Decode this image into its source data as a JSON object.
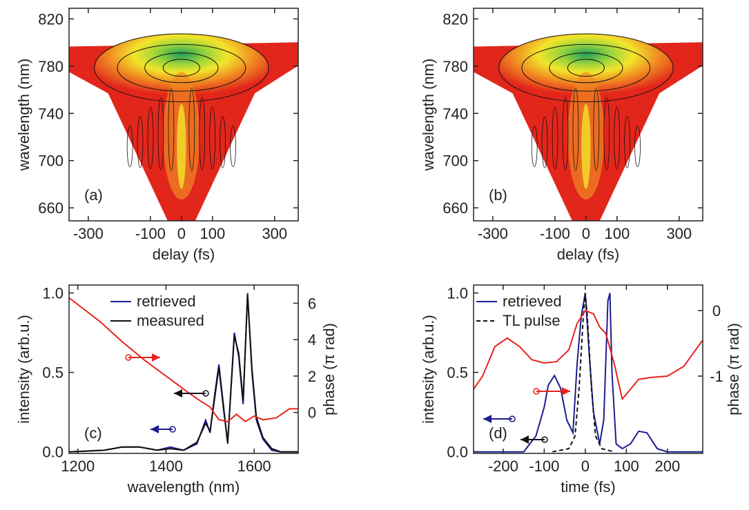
{
  "chart_data": [
    {
      "type": "contour",
      "label": "(a)",
      "xlabel": "delay (fs)",
      "ylabel": "wavelength (nm)",
      "xlim": [
        -362,
        376
      ],
      "ylim": [
        649,
        829
      ],
      "xticks": [
        -300,
        -100,
        0,
        100,
        300
      ],
      "yticks": [
        660,
        700,
        740,
        780,
        820
      ]
    },
    {
      "type": "contour",
      "label": "(b)",
      "xlabel": "delay (fs)",
      "ylabel": "wavelength (nm)",
      "xlim": [
        -362,
        376
      ],
      "ylim": [
        649,
        829
      ],
      "xticks": [
        -300,
        -100,
        0,
        100,
        300
      ],
      "yticks": [
        660,
        700,
        740,
        780,
        820
      ]
    },
    {
      "type": "line",
      "label": "(c)",
      "xlabel": "wavelength (nm)",
      "ylabel": "intensity (arb.u.)",
      "y2label": "phase (π rad)",
      "xlim": [
        1180,
        1700
      ],
      "ylim": [
        -0.01,
        1.05
      ],
      "y2lim": [
        -2.25,
        7
      ],
      "xticks": [
        1200,
        1400,
        1600
      ],
      "yticks": [
        {
          "value": 0,
          "label": "0.0"
        },
        {
          "value": 0.5,
          "label": "0.5"
        },
        {
          "value": 1,
          "label": "1.0"
        }
      ],
      "y2ticks": [
        0,
        2,
        4,
        6
      ],
      "series": [
        {
          "name": "retrieved",
          "color": "#1c1c8f",
          "dash": false,
          "x": [
            1180,
            1260,
            1300,
            1340,
            1380,
            1410,
            1440,
            1470,
            1490,
            1500,
            1510,
            1520,
            1530,
            1540,
            1555,
            1565,
            1575,
            1585,
            1595,
            1605,
            1620,
            1640,
            1660,
            1700
          ],
          "values": [
            0,
            0.01,
            0.03,
            0.03,
            0.01,
            0.03,
            0.01,
            0.05,
            0.2,
            0.12,
            0.35,
            0.55,
            0.3,
            0.05,
            0.75,
            0.6,
            0.3,
            1.0,
            0.5,
            0.2,
            0.08,
            0.01,
            0,
            0
          ]
        },
        {
          "name": "measured",
          "color": "#111111",
          "dash": false,
          "x": [
            1180,
            1260,
            1300,
            1340,
            1380,
            1410,
            1440,
            1470,
            1490,
            1500,
            1510,
            1520,
            1530,
            1540,
            1555,
            1565,
            1575,
            1585,
            1595,
            1605,
            1620,
            1640,
            1660,
            1700
          ],
          "values": [
            0,
            0.01,
            0.03,
            0.03,
            0.01,
            0.02,
            0.01,
            0.06,
            0.18,
            0.13,
            0.33,
            0.53,
            0.28,
            0.06,
            0.73,
            0.62,
            0.32,
            0.99,
            0.52,
            0.22,
            0.09,
            0.02,
            0,
            0
          ]
        },
        {
          "color": "#e8231e",
          "dash": false,
          "axis": "y2",
          "x": [
            1180,
            1250,
            1300,
            1350,
            1400,
            1450,
            1480,
            1500,
            1520,
            1540,
            1560,
            1580,
            1600,
            1620,
            1650,
            1680,
            1700
          ],
          "values": [
            6.3,
            5.0,
            3.9,
            2.9,
            2.0,
            1.1,
            0.6,
            0.3,
            -0.4,
            -0.5,
            -0.1,
            -0.5,
            -0.2,
            -0.4,
            -0.3,
            0.2,
            0.2
          ]
        }
      ]
    },
    {
      "type": "line",
      "label": "(d)",
      "xlabel": "time (fs)",
      "ylabel": "intensity (arb.u.)",
      "y2label": "phase (π rad)",
      "xlim": [
        -272,
        286
      ],
      "ylim": [
        -0.01,
        1.05
      ],
      "y2lim": [
        -2.18,
        0.39
      ],
      "xticks": [
        -200,
        -100,
        0,
        100,
        200
      ],
      "yticks": [
        {
          "value": 0,
          "label": "0.0"
        },
        {
          "value": 0.5,
          "label": "0.5"
        },
        {
          "value": 1,
          "label": "1.0"
        }
      ],
      "y2ticks": [
        -1,
        0
      ],
      "series": [
        {
          "name": "retrieved",
          "color": "#1c1c8f",
          "dash": false,
          "x": [
            -272,
            -150,
            -120,
            -100,
            -90,
            -75,
            -60,
            -45,
            -30,
            -20,
            -10,
            0,
            10,
            20,
            35,
            45,
            55,
            60,
            65,
            75,
            90,
            110,
            130,
            150,
            175,
            200,
            286
          ],
          "values": [
            0,
            0,
            0.1,
            0.28,
            0.42,
            0.48,
            0.4,
            0.2,
            0.12,
            0.55,
            0.85,
            1.0,
            0.6,
            0.25,
            0.05,
            0.2,
            0.95,
            1.0,
            0.5,
            0.05,
            0.02,
            0.05,
            0.13,
            0.12,
            0.02,
            0,
            0
          ]
        },
        {
          "name": "TL pulse",
          "color": "#111111",
          "dash": true,
          "x": [
            -80,
            -40,
            -25,
            -15,
            -5,
            0,
            5,
            15,
            25,
            40,
            70
          ],
          "values": [
            0,
            0.02,
            0.1,
            0.4,
            0.85,
            1.0,
            0.85,
            0.4,
            0.1,
            0.02,
            0
          ]
        },
        {
          "color": "#e8231e",
          "dash": false,
          "axis": "y2",
          "x": [
            -272,
            -250,
            -220,
            -190,
            -160,
            -130,
            -100,
            -70,
            -40,
            -20,
            0,
            20,
            35,
            50,
            70,
            90,
            110,
            130,
            160,
            200,
            240,
            286
          ],
          "values": [
            -1.2,
            -1.0,
            -0.55,
            -0.42,
            -0.55,
            -0.75,
            -0.8,
            -0.78,
            -0.6,
            -0.2,
            0.0,
            -0.05,
            -0.25,
            -0.35,
            -0.8,
            -1.35,
            -1.2,
            -1.05,
            -1.02,
            -1.0,
            -0.85,
            -0.45
          ]
        }
      ]
    }
  ]
}
